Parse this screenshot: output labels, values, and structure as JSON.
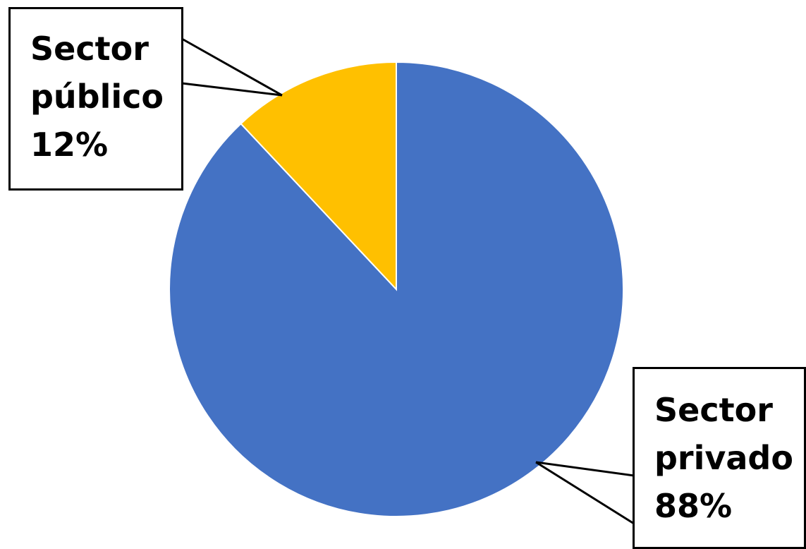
{
  "chart_data": {
    "type": "pie",
    "title": "",
    "start_angle_deg": 0,
    "direction": "clockwise",
    "slices": [
      {
        "label_line1": "Sector",
        "label_line2": "privado",
        "percent": 88,
        "percent_label": "88%",
        "color": "#4472C4"
      },
      {
        "label_line1": "Sector",
        "label_line2": "público",
        "percent": 12,
        "percent_label": "12%",
        "color": "#FFC000"
      }
    ],
    "slice_border_color": "#FFFFFF",
    "leader_line_color": "#000000",
    "label_box_border_color": "#000000"
  }
}
